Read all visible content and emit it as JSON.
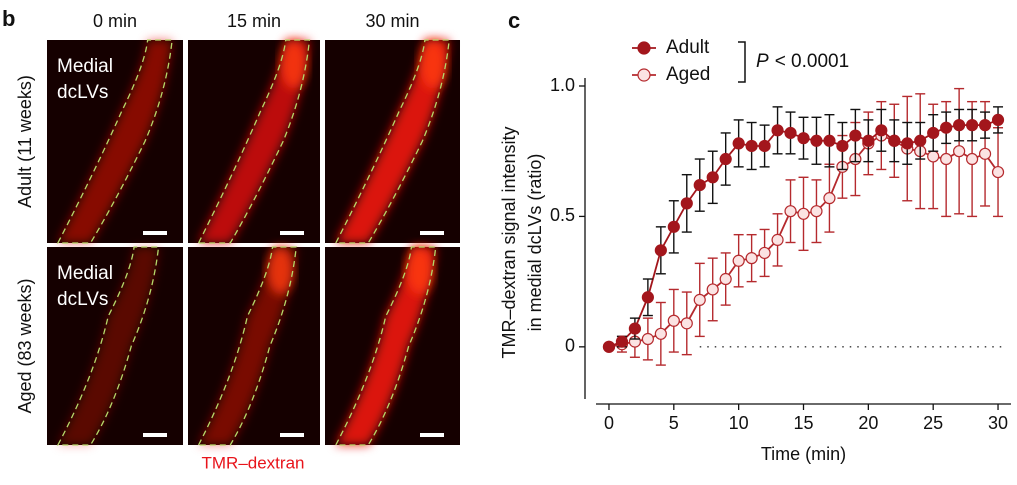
{
  "panel_b": {
    "label": "b",
    "columns": [
      "0 min",
      "15 min",
      "30 min"
    ],
    "rows": [
      {
        "label": "Adult (11 weeks)",
        "inset": [
          "Medial",
          "dcLVs"
        ]
      },
      {
        "label": "Aged (83 weeks)",
        "inset": [
          "Medial",
          "dcLVs"
        ]
      }
    ],
    "caption": "TMR–dextran"
  },
  "panel_c_label": "c",
  "chart_data": {
    "type": "line",
    "xlabel": "Time (min)",
    "ylabel": [
      "TMR–dextran signal intensity",
      "in medial dcLVs (ratio)"
    ],
    "annotation": {
      "symbol": "P",
      "text": "< 0.0001"
    },
    "x": [
      0,
      1,
      2,
      3,
      4,
      5,
      6,
      7,
      8,
      9,
      10,
      11,
      12,
      13,
      14,
      15,
      16,
      17,
      18,
      19,
      20,
      21,
      22,
      23,
      24,
      25,
      26,
      27,
      28,
      29,
      30
    ],
    "series": [
      {
        "name": "Adult",
        "color": "#a3161c",
        "marker_fill": "#a3161c",
        "error_color": "#111111",
        "values": [
          0,
          0.02,
          0.07,
          0.19,
          0.37,
          0.46,
          0.55,
          0.62,
          0.65,
          0.72,
          0.78,
          0.77,
          0.77,
          0.83,
          0.82,
          0.8,
          0.79,
          0.79,
          0.77,
          0.81,
          0.79,
          0.83,
          0.79,
          0.78,
          0.79,
          0.82,
          0.84,
          0.85,
          0.85,
          0.85,
          0.87
        ],
        "errors": [
          0,
          0.02,
          0.04,
          0.07,
          0.09,
          0.1,
          0.11,
          0.1,
          0.1,
          0.1,
          0.09,
          0.09,
          0.08,
          0.09,
          0.08,
          0.08,
          0.09,
          0.1,
          0.09,
          0.1,
          0.08,
          0.08,
          0.08,
          0.08,
          0.07,
          0.07,
          0.06,
          0.06,
          0.06,
          0.05,
          0.05
        ]
      },
      {
        "name": "Aged",
        "color": "#b52a2e",
        "marker_fill": "#fbe3e3",
        "error_color": "#b52a2e",
        "values": [
          0,
          0.01,
          0.02,
          0.03,
          0.05,
          0.1,
          0.09,
          0.18,
          0.22,
          0.26,
          0.33,
          0.34,
          0.36,
          0.41,
          0.52,
          0.51,
          0.52,
          0.57,
          0.69,
          0.72,
          0.78,
          0.81,
          0.79,
          0.76,
          0.75,
          0.73,
          0.72,
          0.75,
          0.72,
          0.74,
          0.67
        ],
        "errors": [
          0,
          0.03,
          0.06,
          0.08,
          0.12,
          0.12,
          0.12,
          0.14,
          0.12,
          0.1,
          0.1,
          0.09,
          0.09,
          0.1,
          0.12,
          0.14,
          0.12,
          0.13,
          0.12,
          0.14,
          0.12,
          0.13,
          0.14,
          0.2,
          0.22,
          0.2,
          0.22,
          0.24,
          0.22,
          0.2,
          0.17
        ]
      }
    ],
    "xlim": [
      -1,
      31
    ],
    "ylim": [
      -0.2,
      1.0
    ],
    "xticks": [
      0,
      5,
      10,
      15,
      20,
      25,
      30
    ],
    "yticks": [
      0,
      0.5,
      {
        "value": 1,
        "label": "1.0"
      }
    ]
  }
}
